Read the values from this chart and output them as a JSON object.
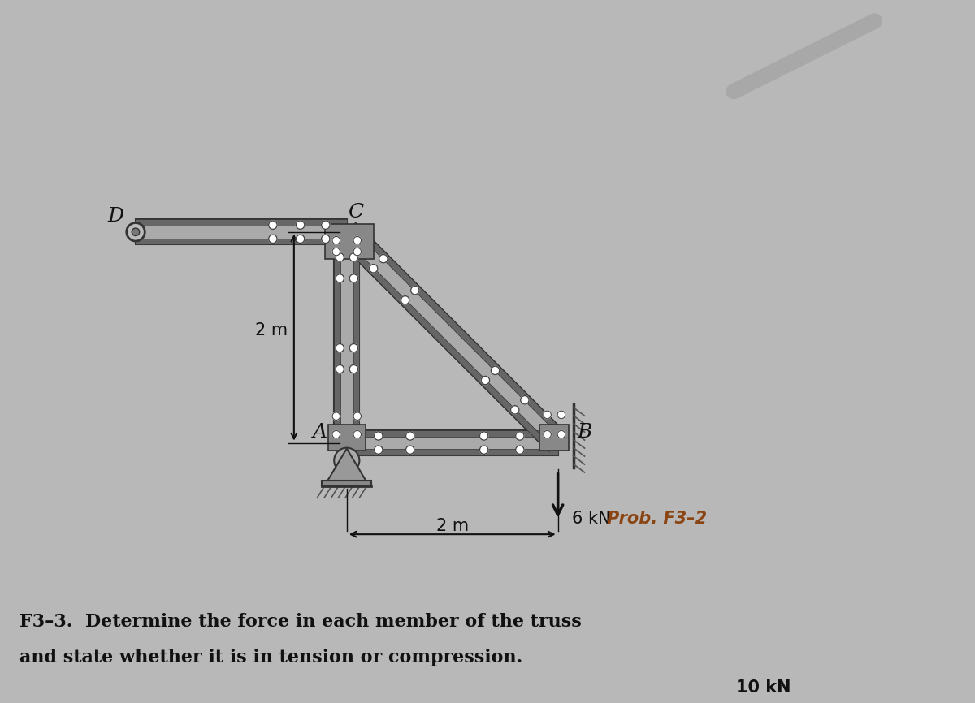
{
  "bg_color": "#b8b8b8",
  "fig_width": 12.0,
  "fig_height": 8.66,
  "member_color": "#aaaaaa",
  "member_dark": "#666666",
  "member_edge": "#333333",
  "gusset_color": "#888888",
  "text_color": "#111111",
  "prob_color": "#8B4513",
  "arrow_color": "#111111",
  "label_D": "D",
  "label_C": "C",
  "label_A": "A",
  "label_B": "B",
  "dim_vert": "2 m",
  "dim_horiz": "2 m",
  "force_label": "6 kN",
  "prob_label": "Prob. F3–2",
  "line1": "F3–3.  Determine the force in each member of the truss",
  "line2": "and state whether it is in tension or compression.",
  "line3": "10 kN"
}
